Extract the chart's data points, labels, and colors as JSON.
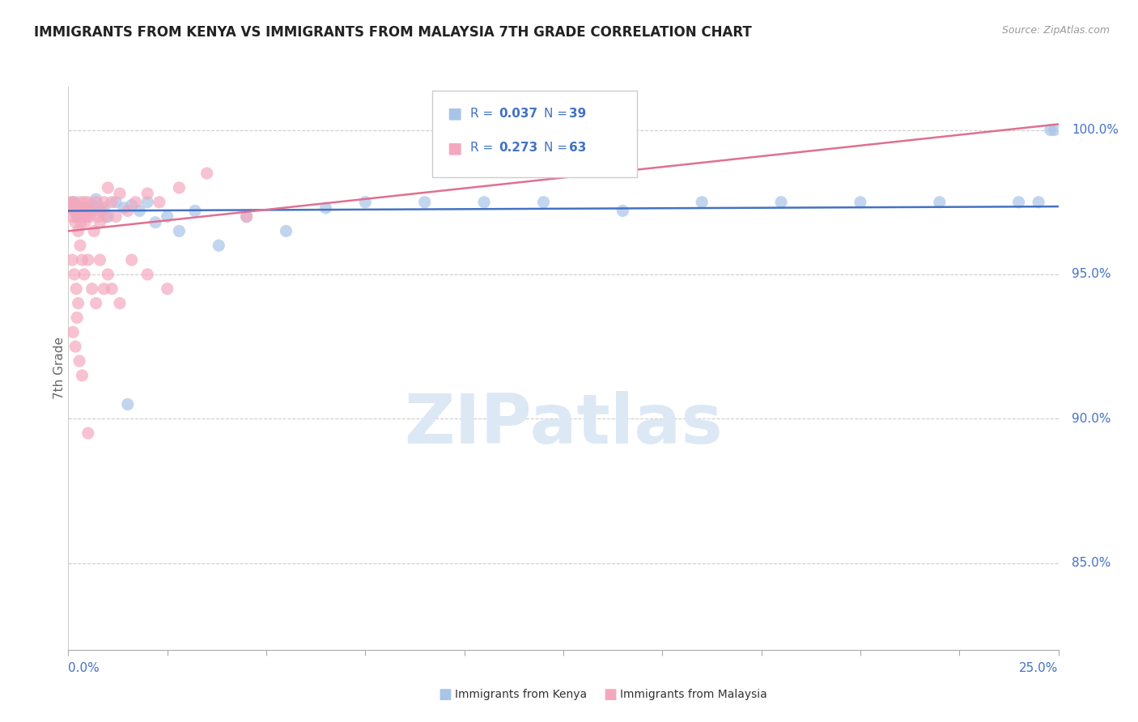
{
  "title": "IMMIGRANTS FROM KENYA VS IMMIGRANTS FROM MALAYSIA 7TH GRADE CORRELATION CHART",
  "source": "Source: ZipAtlas.com",
  "ylabel": "7th Grade",
  "xlim": [
    0.0,
    25.0
  ],
  "ylim": [
    82.0,
    101.5
  ],
  "yticks_right": [
    85.0,
    90.0,
    95.0,
    100.0
  ],
  "legend_r1": "R = 0.037",
  "legend_n1": "N = 39",
  "legend_r2": "R = 0.273",
  "legend_n2": "N = 63",
  "color_kenya": "#a8c4e8",
  "color_malaysia": "#f4a8be",
  "color_kenya_line": "#4472c4",
  "color_malaysia_line": "#e07090",
  "color_blue_text": "#4472c4",
  "kenya_x": [
    0.15,
    0.2,
    0.25,
    0.3,
    0.5,
    0.6,
    0.7,
    0.8,
    1.0,
    1.2,
    1.4,
    1.6,
    1.8,
    2.0,
    2.2,
    2.5,
    2.8,
    3.2,
    3.8,
    4.5,
    5.5,
    6.5,
    7.5,
    9.0,
    10.5,
    12.0,
    14.0,
    16.0,
    18.0,
    20.0,
    22.0,
    24.0,
    24.5,
    24.8,
    24.9,
    0.35,
    0.55,
    0.9,
    1.5
  ],
  "kenya_y": [
    97.5,
    97.2,
    97.0,
    97.3,
    97.1,
    97.4,
    97.6,
    97.2,
    97.0,
    97.5,
    97.3,
    97.4,
    97.2,
    97.5,
    96.8,
    97.0,
    96.5,
    97.2,
    96.0,
    97.0,
    96.5,
    97.3,
    97.5,
    97.5,
    97.5,
    97.5,
    97.2,
    97.5,
    97.5,
    97.5,
    97.5,
    97.5,
    97.5,
    100.0,
    100.0,
    97.0,
    97.2,
    97.3,
    90.5
  ],
  "malaysia_x": [
    0.05,
    0.08,
    0.1,
    0.12,
    0.15,
    0.18,
    0.2,
    0.22,
    0.25,
    0.28,
    0.3,
    0.32,
    0.35,
    0.38,
    0.4,
    0.42,
    0.45,
    0.48,
    0.5,
    0.55,
    0.6,
    0.65,
    0.7,
    0.75,
    0.8,
    0.85,
    0.9,
    0.95,
    1.0,
    1.1,
    1.2,
    1.3,
    1.5,
    1.7,
    2.0,
    2.3,
    2.8,
    3.5,
    4.5,
    0.1,
    0.15,
    0.2,
    0.25,
    0.3,
    0.35,
    0.4,
    0.5,
    0.6,
    0.7,
    0.8,
    0.9,
    1.0,
    1.1,
    1.3,
    1.6,
    2.0,
    2.5,
    0.12,
    0.18,
    0.22,
    0.28,
    0.35,
    0.5
  ],
  "malaysia_y": [
    97.5,
    97.3,
    97.0,
    97.5,
    97.2,
    96.8,
    97.4,
    97.0,
    96.5,
    97.3,
    97.5,
    96.8,
    97.2,
    97.0,
    97.5,
    96.8,
    97.3,
    97.0,
    97.5,
    97.0,
    97.2,
    96.5,
    97.5,
    97.0,
    96.8,
    97.2,
    97.5,
    97.0,
    98.0,
    97.5,
    97.0,
    97.8,
    97.2,
    97.5,
    97.8,
    97.5,
    98.0,
    98.5,
    97.0,
    95.5,
    95.0,
    94.5,
    94.0,
    96.0,
    95.5,
    95.0,
    95.5,
    94.5,
    94.0,
    95.5,
    94.5,
    95.0,
    94.5,
    94.0,
    95.5,
    95.0,
    94.5,
    93.0,
    92.5,
    93.5,
    92.0,
    91.5,
    89.5
  ],
  "kenya_trendline": [
    97.2,
    97.35
  ],
  "malaysia_trendline": [
    96.5,
    100.2
  ],
  "watermark": "ZIPatlas",
  "watermark_color": "#dde8f5"
}
